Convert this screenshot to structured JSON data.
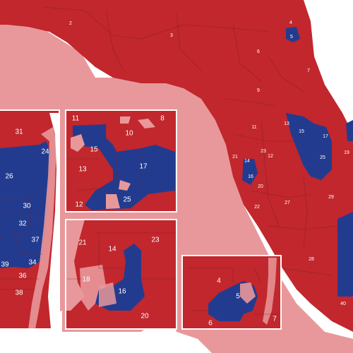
{
  "colors": {
    "republican": "#c1272d",
    "democrat": "#233b8f",
    "water_halo": "#e8989b",
    "background": "#ffffff",
    "label": "#ffffff"
  },
  "main_labels": [
    "2",
    "3",
    "4",
    "5",
    "6",
    "7",
    "9",
    "11",
    "12",
    "13",
    "14",
    "15",
    "16",
    "17",
    "19",
    "20",
    "21",
    "22",
    "23",
    "25",
    "27",
    "28",
    "29",
    "40"
  ],
  "inset_palm_beach": {
    "labels": [
      "31",
      "24",
      "26",
      "30",
      "32",
      "37",
      "34",
      "39",
      "36",
      "38"
    ]
  },
  "inset_orlando": {
    "labels": [
      "8",
      "10",
      "15",
      "13",
      "17",
      "11",
      "25",
      "12"
    ]
  },
  "inset_tampa": {
    "labels": [
      "21",
      "14",
      "23",
      "18",
      "16",
      "20"
    ]
  },
  "inset_jacksonville": {
    "labels": [
      "4",
      "5",
      "6",
      "7"
    ]
  }
}
